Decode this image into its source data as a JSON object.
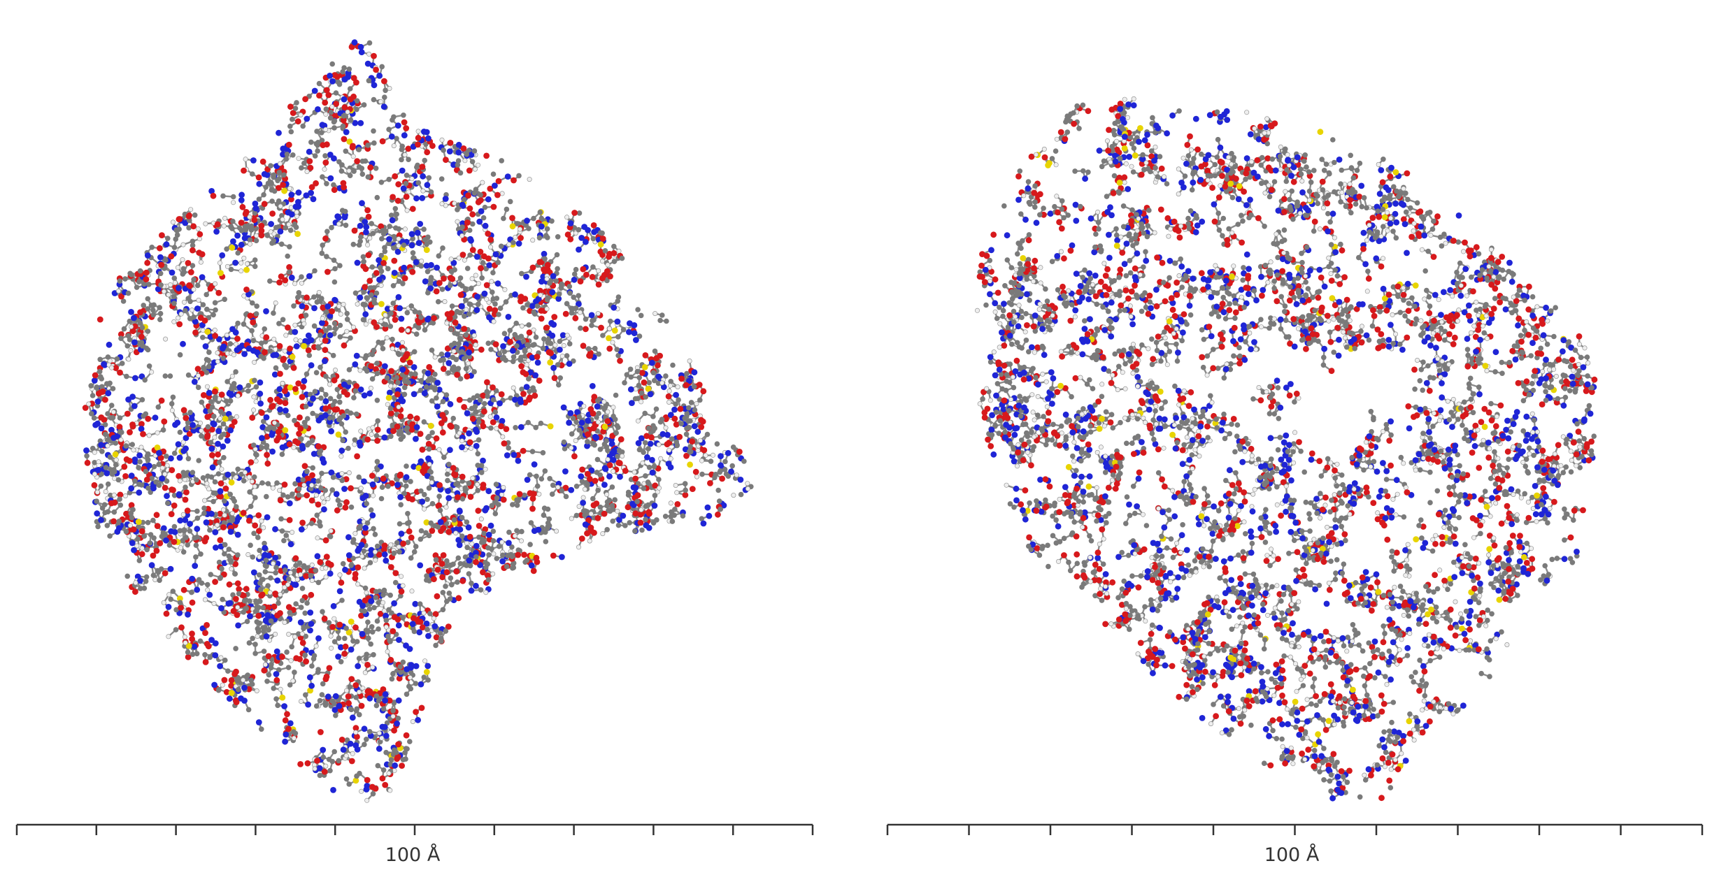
{
  "panels": [
    {
      "id": "left",
      "scale_bar_label": "100 Å"
    },
    {
      "id": "right",
      "scale_bar_label": "100 Å"
    }
  ],
  "atom_colors": {
    "carbon": "#7a7a7a",
    "oxygen": "#d7191c",
    "nitrogen": "#1f25d6",
    "hydrogen": "#eeeeee",
    "sulfur": "#e8d400"
  }
}
